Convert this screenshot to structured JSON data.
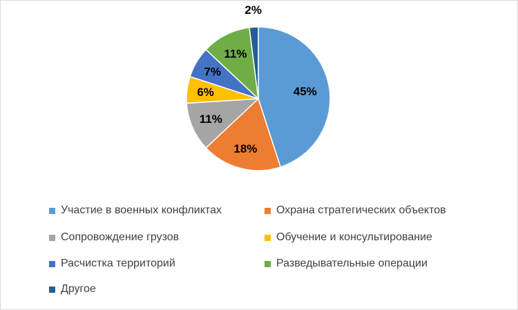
{
  "chart_data": {
    "type": "pie",
    "title": "",
    "categories": [
      "Участие в военных конфликтах",
      "Охрана стратегических объектов",
      "Сопровождение грузов",
      "Обучение и консультирование",
      "Расчистка территорий",
      "Разведывательные операции",
      "Другое"
    ],
    "values": [
      45,
      18,
      11,
      6,
      7,
      11,
      2
    ],
    "data_labels": [
      "45%",
      "18%",
      "11%",
      "6%",
      "7%",
      "11%",
      "2%"
    ],
    "colors": [
      "#5b9bd5",
      "#ed7d31",
      "#a5a5a5",
      "#ffc000",
      "#4472c4",
      "#70ad47",
      "#255e91"
    ],
    "start_angle": "12 o'clock",
    "direction": "clockwise",
    "legend_position": "bottom"
  }
}
